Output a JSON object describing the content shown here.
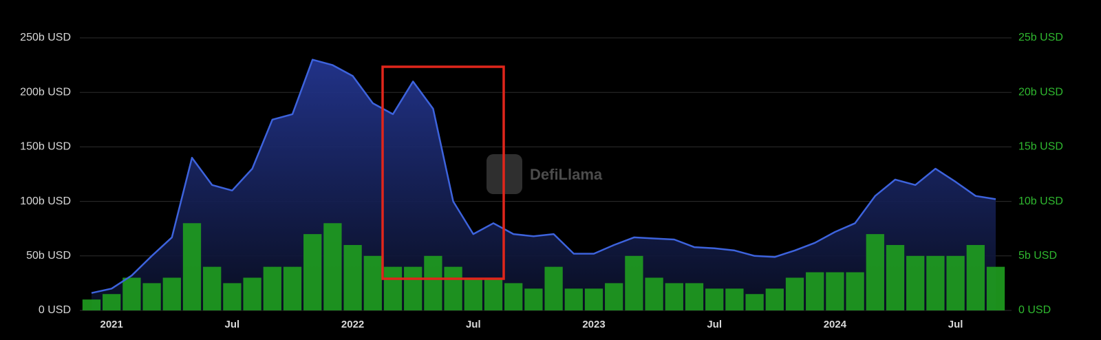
{
  "chart_data": {
    "type": "line+bar",
    "watermark": "DefiLlama",
    "categories": [
      null,
      "2021",
      null,
      null,
      null,
      null,
      null,
      "Jul",
      null,
      null,
      null,
      null,
      null,
      "2022",
      null,
      null,
      null,
      null,
      null,
      "Jul",
      null,
      null,
      null,
      null,
      null,
      "2023",
      null,
      null,
      null,
      null,
      null,
      "Jul",
      null,
      null,
      null,
      null,
      null,
      "2024",
      null,
      null,
      null,
      null,
      null,
      "Jul",
      null,
      null
    ],
    "series": [
      {
        "type": "line",
        "axis": "y",
        "color": "#3d63dd",
        "values": [
          16,
          20,
          32,
          50,
          67,
          140,
          115,
          110,
          130,
          175,
          180,
          230,
          225,
          215,
          190,
          180,
          210,
          185,
          100,
          70,
          80,
          70,
          68,
          70,
          52,
          52,
          60,
          67,
          66,
          65,
          58,
          57,
          55,
          50,
          49,
          55,
          62,
          72,
          80,
          105,
          120,
          115,
          130,
          118,
          105,
          102
        ]
      },
      {
        "type": "bar",
        "axis": "y2",
        "color": "#1f9e1f",
        "values": [
          1,
          1.5,
          3,
          2.5,
          3,
          8,
          4,
          2.5,
          3,
          4,
          4,
          7,
          8,
          6,
          5,
          4,
          4,
          5,
          4,
          3,
          3,
          2.5,
          2,
          4,
          2,
          2,
          2.5,
          5,
          3,
          2.5,
          2.5,
          2,
          2,
          1.5,
          2,
          3,
          3.5,
          3.5,
          3.5,
          7,
          6,
          5,
          5,
          5,
          6,
          4
        ]
      }
    ],
    "ylim": [
      0,
      250
    ],
    "yticks": [
      {
        "value": 0,
        "label": "0 USD"
      },
      {
        "value": 50,
        "label": "50b USD"
      },
      {
        "value": 100,
        "label": "100b USD"
      },
      {
        "value": 150,
        "label": "150b USD"
      },
      {
        "value": 200,
        "label": "200b USD"
      },
      {
        "value": 250,
        "label": "250b USD"
      }
    ],
    "y2lim": [
      0,
      25
    ],
    "y2ticks": [
      {
        "value": 0,
        "label": "0 USD"
      },
      {
        "value": 5,
        "label": "5b USD"
      },
      {
        "value": 10,
        "label": "10b USD"
      },
      {
        "value": 15,
        "label": "15b USD"
      },
      {
        "value": 20,
        "label": "20b USD"
      },
      {
        "value": 25,
        "label": "25b USD"
      }
    ],
    "grid": true
  }
}
